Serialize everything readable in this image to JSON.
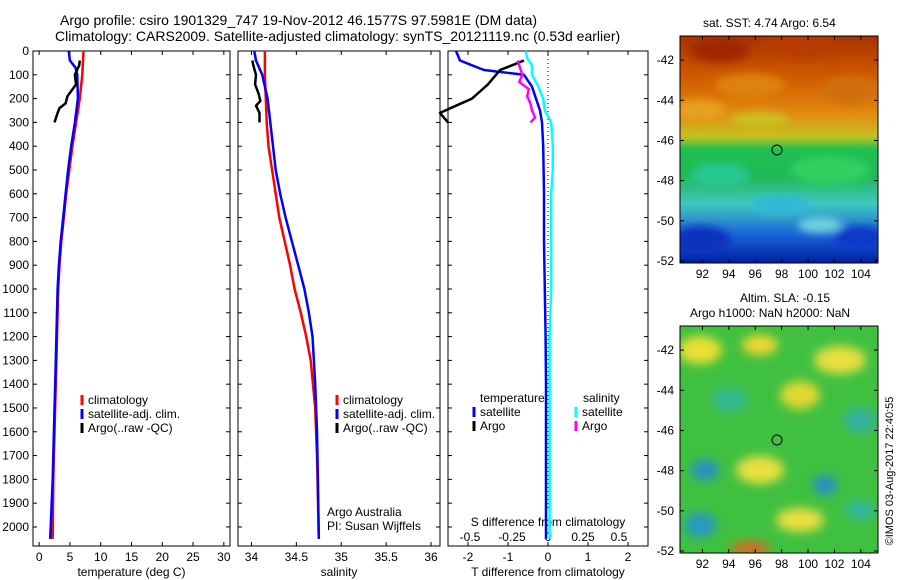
{
  "header": {
    "title_line1": "Argo profile: csiro 1901329_747 19-Nov-2012 46.1577S 97.5981E (DM data)",
    "title_line2": "Climatology: CARS2009. Satellite-adjusted climatology: synTS_20121119.nc (0.53d earlier)"
  },
  "maps": {
    "sst_title": "sat. SST: 4.74 Argo: 6.54",
    "sla_title_line1": "Altim. SLA: -0.15",
    "sla_title_line2": "Argo h1000: NaN h2000: NaN",
    "x_ticks": [
      "92",
      "94",
      "96",
      "98",
      "100",
      "102",
      "104"
    ],
    "sst_y_ticks": [
      "-42",
      "-44",
      "-46",
      "-48",
      "-50",
      "-52"
    ],
    "sla_y_ticks": [
      "-42",
      "-44",
      "-46",
      "-48",
      "-50",
      "-52"
    ]
  },
  "credit": "©IMOS 03-Aug-2017 22:40:55",
  "colors": {
    "climatology": "#ff0000",
    "satellite": "#0000ff",
    "argo": "#000000",
    "sal_satellite": "#00ffff",
    "sal_argo": "#ff00ff"
  },
  "chart_data": [
    {
      "type": "line",
      "xlabel": "temperature (deg C)",
      "ylabel": "",
      "xlim": [
        -1,
        31
      ],
      "ylim": [
        2080,
        0
      ],
      "x_ticks": [
        "0",
        "5",
        "10",
        "15",
        "20",
        "25",
        "30"
      ],
      "y_ticks": [
        "0",
        "100",
        "200",
        "300",
        "400",
        "500",
        "600",
        "700",
        "800",
        "900",
        "1000",
        "1100",
        "1200",
        "1300",
        "1400",
        "1500",
        "1600",
        "1700",
        "1800",
        "1900",
        "2000"
      ],
      "legend": [
        "climatology",
        "satellite-adj. clim.",
        "Argo(..raw -QC)"
      ],
      "series": [
        {
          "name": "climatology",
          "x": [
            7.2,
            7.0,
            6.6,
            6.0,
            5.4,
            4.9,
            4.4,
            4.0,
            3.6,
            3.3,
            3.1,
            2.9,
            2.7,
            2.5,
            2.3,
            2.2
          ],
          "y": [
            0,
            100,
            200,
            300,
            400,
            500,
            600,
            700,
            800,
            900,
            1000,
            1200,
            1400,
            1600,
            1800,
            2050
          ]
        },
        {
          "name": "satellite-adj. clim.",
          "x": [
            4.8,
            5.0,
            5.9,
            6.2,
            6.3,
            5.8,
            5.2,
            4.7,
            4.3,
            3.9,
            3.5,
            3.2,
            3.0,
            2.8,
            2.6,
            2.4,
            2.2,
            1.8
          ],
          "y": [
            0,
            40,
            70,
            100,
            200,
            300,
            400,
            500,
            600,
            700,
            800,
            900,
            1000,
            1200,
            1400,
            1600,
            1800,
            2050
          ]
        },
        {
          "name": "Argo(..raw -QC)",
          "x": [
            6.6,
            6.5,
            5.8,
            6.0,
            4.6,
            4.3,
            3.3,
            3.0,
            2.5
          ],
          "y": [
            40,
            60,
            100,
            140,
            190,
            220,
            240,
            260,
            300
          ]
        }
      ]
    },
    {
      "type": "line",
      "xlabel": "salinity",
      "ylabel": "",
      "xlim": [
        33.85,
        36.1
      ],
      "ylim": [
        2080,
        0
      ],
      "x_ticks": [
        "34",
        "34.5",
        "35",
        "35.5",
        "36"
      ],
      "legend": [
        "climatology",
        "satellite-adj. clim.",
        "Argo(..raw -QC)"
      ],
      "series": [
        {
          "name": "climatology",
          "x": [
            34.15,
            34.15,
            34.16,
            34.17,
            34.19,
            34.23,
            34.27,
            34.31,
            34.37,
            34.43,
            34.48,
            34.55,
            34.61,
            34.66,
            34.71,
            34.73,
            34.75
          ],
          "y": [
            0,
            100,
            200,
            300,
            400,
            500,
            600,
            700,
            800,
            900,
            1000,
            1100,
            1200,
            1300,
            1500,
            1700,
            2050
          ]
        },
        {
          "name": "satellite-adj. clim.",
          "x": [
            34.03,
            34.05,
            34.12,
            34.18,
            34.21,
            34.24,
            34.27,
            34.32,
            34.38,
            34.45,
            34.52,
            34.59,
            34.64,
            34.68,
            34.71,
            34.73,
            34.74,
            34.75
          ],
          "y": [
            0,
            40,
            100,
            200,
            300,
            400,
            500,
            600,
            700,
            800,
            900,
            1000,
            1100,
            1200,
            1400,
            1600,
            1800,
            2050
          ]
        },
        {
          "name": "Argo(..raw -QC)",
          "x": [
            34.01,
            34.02,
            34.05,
            34.04,
            34.08,
            34.1,
            34.05,
            34.09,
            34.09
          ],
          "y": [
            40,
            60,
            100,
            140,
            180,
            210,
            230,
            260,
            300
          ]
        }
      ],
      "annotations": [
        "Argo Australia",
        "PI: Susan Wijffels"
      ]
    },
    {
      "type": "line",
      "xlabel": "T difference from climatology",
      "ylabel": "",
      "xlim": [
        -2.5,
        2.5
      ],
      "ylim": [
        2080,
        0
      ],
      "x_ticks": [
        "-2",
        "-1",
        "0",
        "1",
        "2"
      ],
      "x2_label": "S difference from climatology",
      "x2_ticks": [
        "-0.5",
        "-0.25",
        "0",
        "0.25",
        "0.5"
      ],
      "legend_title_left": "temperature",
      "legend_title_right": "salinity",
      "legend": [
        "satellite",
        "Argo",
        "satellite",
        "Argo"
      ],
      "series": [
        {
          "name": "satellite",
          "group": "temperature",
          "x": [
            -2.3,
            -2.2,
            -1.9,
            -1.6,
            -0.6,
            -0.4,
            -0.3,
            -0.2,
            -0.15,
            -0.12,
            -0.1,
            -0.1,
            -0.08,
            -0.06,
            -0.05,
            -0.05,
            -0.05,
            -0.05
          ],
          "y": [
            0,
            40,
            60,
            80,
            100,
            150,
            200,
            250,
            300,
            400,
            600,
            800,
            1000,
            1200,
            1400,
            1600,
            1800,
            2050
          ]
        },
        {
          "name": "Argo",
          "group": "temperature",
          "x": [
            -0.6,
            -0.9,
            -1.2,
            -1.3,
            -1.5,
            -1.7,
            -1.9,
            -2.3,
            -2.7,
            -2.5
          ],
          "y": [
            40,
            60,
            80,
            100,
            140,
            170,
            200,
            230,
            260,
            300
          ]
        },
        {
          "name": "satellite",
          "group": "salinity",
          "x": [
            -0.14,
            -0.13,
            -0.1,
            -0.1,
            -0.06,
            -0.03,
            -0.02,
            0.02,
            0.03,
            0.03,
            0.02,
            0.02,
            0.02,
            0.01,
            0.01,
            0.01,
            0.01,
            0.01,
            0.01
          ],
          "y": [
            0,
            30,
            60,
            100,
            150,
            200,
            250,
            300,
            400,
            500,
            600,
            800,
            1000,
            1200,
            1400,
            1600,
            1800,
            1950,
            2050
          ]
        },
        {
          "name": "Argo",
          "group": "salinity",
          "x": [
            -0.19,
            -0.18,
            -0.17,
            -0.16,
            -0.18,
            -0.12,
            -0.13,
            -0.11,
            -0.1,
            -0.08,
            -0.11
          ],
          "y": [
            40,
            60,
            80,
            100,
            130,
            160,
            190,
            220,
            250,
            280,
            300
          ]
        }
      ]
    }
  ]
}
